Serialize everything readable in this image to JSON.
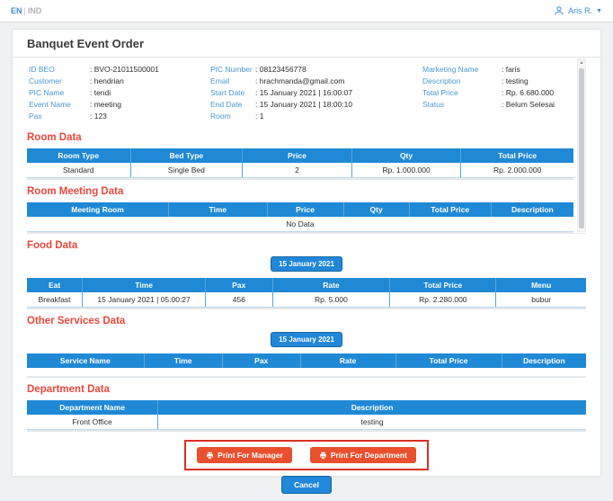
{
  "topbar": {
    "lang_primary": "EN",
    "lang_divider": "|",
    "lang_secondary": "IND",
    "user_name": "Aris R."
  },
  "header": {
    "title": "Banquet Event Order"
  },
  "details": {
    "col1": [
      {
        "label": "ID BEO",
        "value": ": BVO-21011500001"
      },
      {
        "label": "Customer",
        "value": ": hendrian"
      },
      {
        "label": "PIC Name",
        "value": ": tendi"
      },
      {
        "label": "Event Name",
        "value": ": meeting"
      },
      {
        "label": "Pax",
        "value": ": 123"
      }
    ],
    "col2": [
      {
        "label": "PIC Number",
        "value": ": 08123456778"
      },
      {
        "label": "Email",
        "value": ": hrachmanda@gmail.com"
      },
      {
        "label": "Start Date",
        "value": ": 15 January 2021 | 16:00:07"
      },
      {
        "label": "End Date",
        "value": ": 15 January 2021 | 18:00:10"
      },
      {
        "label": "Room",
        "value": ": 1"
      }
    ],
    "col3": [
      {
        "label": "Marketing Name",
        "value": ": faris"
      },
      {
        "label": "Description",
        "value": ": testing"
      },
      {
        "label": "Total Price",
        "value": ": Rp. 6.680.000"
      },
      {
        "label": "Status",
        "value": ": Belum Selesai"
      }
    ]
  },
  "room": {
    "title": "Room Data",
    "headers": [
      "Room Type",
      "Bed Type",
      "Price",
      "Qty",
      "Total Price"
    ],
    "row": [
      "Standard",
      "Single Bed",
      "2",
      "Rp. 1.000.000",
      "Rp. 2.000.000"
    ]
  },
  "room_meeting": {
    "title": "Room Meeting Data",
    "headers": [
      "Meeting Room",
      "Time",
      "Price",
      "Qty",
      "Total Price",
      "Description"
    ],
    "empty": "No Data"
  },
  "food": {
    "title": "Food Data",
    "date_button": "15 January 2021",
    "headers": [
      "Eat",
      "Time",
      "Pax",
      "Rate",
      "Total Price",
      "Menu"
    ],
    "row": [
      "Breakfast",
      "15 January 2021 | 05:00:27",
      "456",
      "Rp. 5.000",
      "Rp. 2.280.000",
      "bubur"
    ]
  },
  "other_services": {
    "title": "Other Services Data",
    "date_button": "15 January 2021",
    "headers": [
      "Service Name",
      "Time",
      "Pax",
      "Rate",
      "Total Price",
      "Description"
    ]
  },
  "department": {
    "title": "Department Data",
    "headers": [
      "Department Name",
      "Description"
    ],
    "row": [
      "Front Office",
      "testing"
    ]
  },
  "actions": {
    "print_manager": "Print For Manager",
    "print_department": "Print For Department",
    "cancel": "Cancel"
  },
  "colors": {
    "table_header_blue": "#2089d5",
    "section_title_red": "#e8473c",
    "detail_label_blue": "#4a97d2",
    "action_orange": "#e8502e",
    "cancel_blue": "#2187d8",
    "annotation_red": "#d93025",
    "link_blue": "#3d8fd4"
  }
}
